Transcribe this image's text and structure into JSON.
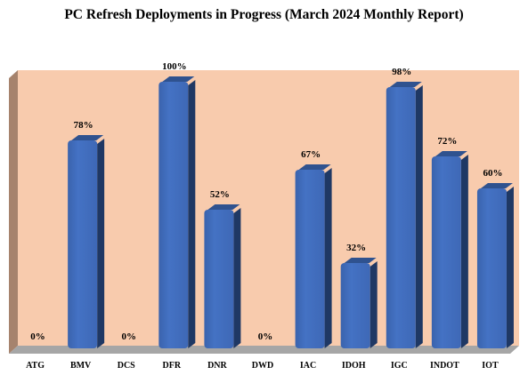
{
  "chart_data": {
    "type": "bar",
    "title": "PC Refresh Deployments in Progress (March 2024 Monthly Report)",
    "categories": [
      "ATG",
      "BMV",
      "DCS",
      "DFR",
      "DNR",
      "DWD",
      "IAC",
      "IDOH",
      "IGC",
      "INDOT",
      "IOT"
    ],
    "values": [
      0,
      78,
      0,
      100,
      52,
      0,
      67,
      32,
      98,
      72,
      60
    ],
    "data_labels": [
      "0%",
      "78%",
      "0%",
      "100%",
      "52%",
      "0%",
      "67%",
      "32%",
      "98%",
      "72%",
      "60%"
    ],
    "ylim": [
      0,
      100
    ],
    "grid": false,
    "legend": "none",
    "colors": {
      "plot_background": "#f8cbad",
      "bar": "#4472c4",
      "bar_top": "#2f528f",
      "bar_side": "#1f3864",
      "wall_side": "#a6836d",
      "floor": "#a6a6a6"
    }
  }
}
